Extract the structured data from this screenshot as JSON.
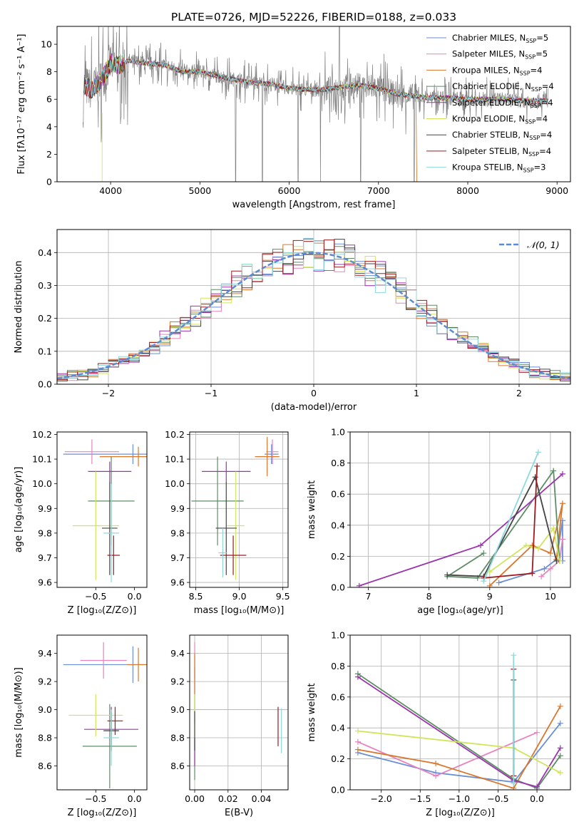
{
  "title": "PLATE=0726, MJD=52226, FIBERID=0188, z=0.033",
  "colors": {
    "s0": "#6a8fd6",
    "s1": "#e684be",
    "s2": "#d9782d",
    "s3": "#5e8c66",
    "s4": "#9b34ad",
    "s5": "#d0e65a",
    "s6": "#444444",
    "s7": "#9e1b1f",
    "s8": "#8dd9dd",
    "spectrum": "#808080",
    "normal": "#5b8bd1"
  },
  "chart_data": [
    {
      "id": "spectrum",
      "type": "line",
      "title": "PLATE=0726, MJD=52226, FIBERID=0188, z=0.033",
      "xlabel": "wavelength [Angstrom, rest frame]",
      "ylabel": "Flux [fλ10⁻¹⁷ erg cm⁻² s⁻¹ A⁻¹]",
      "xlim": [
        3400,
        9150
      ],
      "ylim": [
        0,
        11.3
      ],
      "xticks": [
        4000,
        5000,
        6000,
        7000,
        8000,
        9000
      ],
      "yticks": [
        0,
        2,
        4,
        6,
        8,
        10
      ],
      "grid": false,
      "legend_position": "top-right",
      "legend": [
        "Chabrier MILES, N_SSP=5",
        "Salpeter MILES, N_SSP=5",
        "Kroupa MILES, N_SSP=4",
        "Chabrier ELODIE, N_SSP=4",
        "Salpeter ELODIE, N_SSP=4",
        "Kroupa ELODIE, N_SSP=4",
        "Chabrier STELIB, N_SSP=4",
        "Salpeter STELIB, N_SSP=4",
        "Kroupa STELIB, N_SSP=3"
      ],
      "continuum": {
        "x": [
          3700,
          3800,
          3900,
          4000,
          4100,
          4200,
          4400,
          4600,
          4800,
          5000,
          5200,
          5400,
          5600,
          5800,
          6000,
          6200,
          6400,
          6600,
          6800,
          7000,
          7200,
          7400,
          7600,
          7800,
          8000,
          8200,
          8400,
          8600,
          8800
        ],
        "y": [
          7.0,
          6.7,
          7.5,
          8.6,
          8.5,
          8.8,
          8.6,
          8.5,
          8.0,
          8.0,
          7.7,
          7.4,
          7.2,
          7.1,
          6.8,
          6.7,
          6.7,
          6.9,
          7.0,
          6.8,
          6.4,
          6.2,
          6.1,
          6.1,
          6.0,
          6.0,
          6.0,
          5.9,
          5.9
        ]
      }
    },
    {
      "id": "residuals",
      "type": "histogram",
      "xlabel": "(data-model)/error",
      "ylabel": "Normed distribution",
      "xlim": [
        -2.5,
        2.5
      ],
      "ylim": [
        0,
        0.47
      ],
      "xticks": [
        -2,
        -1,
        0,
        1,
        2
      ],
      "yticks": [
        0,
        0.1,
        0.2,
        0.3,
        0.4
      ],
      "grid": true,
      "legend": [
        "𝒩(0, 1)"
      ],
      "legend_position": "top-right",
      "bin_width": 0.1
    },
    {
      "id": "age-vs-Z",
      "type": "scatter",
      "xlabel": "Z [log₁₀(Z/Z⊙)]",
      "ylabel": "age  [log₁₀(age/yr)]",
      "xlim": [
        -1.0,
        0.16
      ],
      "ylim": [
        9.58,
        10.21
      ],
      "xticks": [
        -0.5,
        0.0
      ],
      "yticks": [
        9.6,
        9.7,
        9.8,
        9.9,
        10.0,
        10.1,
        10.2
      ],
      "grid": false,
      "points": [
        {
          "s": 0,
          "x": -0.02,
          "y": 10.12,
          "xerr": 0.9,
          "yerr": 0.04
        },
        {
          "s": 1,
          "x": -0.55,
          "y": 10.13,
          "xerr": 0.35,
          "yerr": 0.05
        },
        {
          "s": 2,
          "x": 0.05,
          "y": 10.11,
          "xerr": 0.5,
          "yerr": 0.04
        },
        {
          "s": 3,
          "x": -0.3,
          "y": 9.93,
          "xerr": 0.3,
          "yerr": 0.18
        },
        {
          "s": 4,
          "x": -0.32,
          "y": 10.05,
          "xerr": 0.28,
          "yerr": 0.04
        },
        {
          "s": 5,
          "x": -0.5,
          "y": 9.83,
          "xerr": 0.3,
          "yerr": 0.22
        },
        {
          "s": 6,
          "x": -0.32,
          "y": 9.82,
          "xerr": 0.1,
          "yerr": 0.19
        },
        {
          "s": 7,
          "x": -0.27,
          "y": 9.71,
          "xerr": 0.08,
          "yerr": 0.08
        },
        {
          "s": 8,
          "x": -0.3,
          "y": 9.8,
          "xerr": 0.1,
          "yerr": 0.2
        }
      ]
    },
    {
      "id": "age-vs-mass",
      "type": "scatter",
      "xlabel": "mass [log₁₀(M/M⊙)]",
      "ylabel": "",
      "xlim": [
        8.43,
        9.56
      ],
      "ylim": [
        9.58,
        10.21
      ],
      "xticks": [
        8.5,
        9.0,
        9.5
      ],
      "yticks": [
        9.6,
        9.7,
        9.8,
        9.9,
        10.0,
        10.1,
        10.2
      ],
      "grid": true,
      "points": [
        {
          "s": 0,
          "x": 9.37,
          "y": 10.12,
          "xerr": 0.08,
          "yerr": 0.04
        },
        {
          "s": 1,
          "x": 9.38,
          "y": 10.13,
          "xerr": 0.07,
          "yerr": 0.05
        },
        {
          "s": 2,
          "x": 9.32,
          "y": 10.11,
          "xerr": 0.14,
          "yerr": 0.08
        },
        {
          "s": 3,
          "x": 8.75,
          "y": 9.93,
          "xerr": 0.3,
          "yerr": 0.18
        },
        {
          "s": 4,
          "x": 8.85,
          "y": 10.05,
          "xerr": 0.28,
          "yerr": 0.04
        },
        {
          "s": 5,
          "x": 8.96,
          "y": 9.83,
          "xerr": 0.1,
          "yerr": 0.22
        },
        {
          "s": 6,
          "x": 8.85,
          "y": 9.82,
          "xerr": 0.12,
          "yerr": 0.19
        },
        {
          "s": 7,
          "x": 8.93,
          "y": 9.71,
          "xerr": 0.15,
          "yerr": 0.08
        },
        {
          "s": 8,
          "x": 8.81,
          "y": 9.72,
          "xerr": 0.05,
          "yerr": 0.1
        }
      ]
    },
    {
      "id": "weight-vs-age",
      "type": "line",
      "xlabel": "age  [log₁₀(age/yr)]",
      "ylabel": "mass weight",
      "xlim": [
        6.7,
        10.33
      ],
      "ylim": [
        0,
        1.0
      ],
      "xticks": [
        7,
        8,
        9,
        10
      ],
      "yticks": [
        0,
        0.2,
        0.4,
        0.6,
        0.8,
        1.0
      ],
      "grid": true,
      "series": [
        {
          "s": 0,
          "x": [
            9.15,
            9.9,
            10.1,
            10.2,
            10.2
          ],
          "y": [
            0.03,
            0.12,
            0.18,
            0.43,
            0.17
          ]
        },
        {
          "s": 1,
          "x": [
            9.85,
            10.0,
            10.15,
            10.2
          ],
          "y": [
            0.07,
            0.12,
            0.17,
            0.31
          ]
        },
        {
          "s": 2,
          "x": [
            9.0,
            9.7,
            10.0,
            10.2,
            10.1
          ],
          "y": [
            0.01,
            0.27,
            0.22,
            0.54,
            0.18
          ]
        },
        {
          "s": 3,
          "x": [
            8.9,
            8.3,
            8.8,
            10.05,
            10.15
          ],
          "y": [
            0.22,
            0.07,
            0.06,
            0.75,
            0.17
          ]
        },
        {
          "s": 4,
          "x": [
            6.85,
            8.85,
            10.2
          ],
          "y": [
            0.01,
            0.27,
            0.73
          ]
        },
        {
          "s": 5,
          "x": [
            9.0,
            9.6,
            9.8,
            10.05,
            10.15
          ],
          "y": [
            0.1,
            0.27,
            0.25,
            0.38,
            0.17
          ]
        },
        {
          "s": 6,
          "x": [
            8.3,
            8.9,
            9.75,
            10.1
          ],
          "y": [
            0.08,
            0.07,
            0.71,
            0.17
          ]
        },
        {
          "s": 7,
          "x": [
            8.9,
            9.7,
            9.78
          ],
          "y": [
            0.06,
            0.09,
            0.78
          ]
        },
        {
          "s": 8,
          "x": [
            8.9,
            9.8
          ],
          "y": [
            0.04,
            0.87
          ]
        }
      ]
    },
    {
      "id": "mass-vs-Z",
      "type": "scatter",
      "xlabel": "Z [log₁₀(Z/Z⊙)]",
      "ylabel": "mass [log₁₀(M/M⊙)]",
      "xlim": [
        -1.0,
        0.16
      ],
      "ylim": [
        8.43,
        9.53
      ],
      "xticks": [
        -0.5,
        0.0
      ],
      "yticks": [
        8.6,
        8.8,
        9.0,
        9.2,
        9.4
      ],
      "grid": false,
      "points": [
        {
          "s": 0,
          "x": -0.02,
          "y": 9.32,
          "xerr": 0.9,
          "yerr": 0.13
        },
        {
          "s": 1,
          "x": -0.4,
          "y": 9.35,
          "xerr": 0.3,
          "yerr": 0.13
        },
        {
          "s": 2,
          "x": 0.05,
          "y": 9.32,
          "xerr": 0.15,
          "yerr": 0.12
        },
        {
          "s": 3,
          "x": -0.32,
          "y": 8.74,
          "xerr": 0.35,
          "yerr": 0.3
        },
        {
          "s": 4,
          "x": -0.3,
          "y": 8.86,
          "xerr": 0.35,
          "yerr": 0.16
        },
        {
          "s": 5,
          "x": -0.5,
          "y": 8.96,
          "xerr": 0.35,
          "yerr": 0.15
        },
        {
          "s": 6,
          "x": -0.3,
          "y": 8.85,
          "xerr": 0.1,
          "yerr": 0.14
        },
        {
          "s": 7,
          "x": -0.25,
          "y": 8.92,
          "xerr": 0.1,
          "yerr": 0.1
        },
        {
          "s": 8,
          "x": -0.3,
          "y": 8.8,
          "xerr": 0.1,
          "yerr": 0.2
        }
      ]
    },
    {
      "id": "mass-vs-ebv",
      "type": "scatter",
      "xlabel": "E(B-V)",
      "ylabel": "",
      "xlim": [
        -0.003,
        0.056
      ],
      "ylim": [
        8.43,
        9.53
      ],
      "xticks": [
        0.0,
        0.02,
        0.04
      ],
      "yticks": [
        8.6,
        8.8,
        9.0,
        9.2,
        9.4
      ],
      "grid": true,
      "points": [
        {
          "s": 0,
          "x": 0.0,
          "y": 9.1,
          "xerr": 0,
          "yerr": 0.2
        },
        {
          "s": 1,
          "x": 0.0,
          "y": 9.35,
          "xerr": 0,
          "yerr": 0.13
        },
        {
          "s": 2,
          "x": 0.0,
          "y": 9.2,
          "xerr": 0,
          "yerr": 0.2
        },
        {
          "s": 3,
          "x": 0.0,
          "y": 8.65,
          "xerr": 0,
          "yerr": 0.15
        },
        {
          "s": 4,
          "x": 0.0,
          "y": 8.7,
          "xerr": 0,
          "yerr": 0.1
        },
        {
          "s": 5,
          "x": 0.0,
          "y": 8.96,
          "xerr": 0,
          "yerr": 0.15
        },
        {
          "s": 6,
          "x": 0.0,
          "y": 8.85,
          "xerr": 0,
          "yerr": 0.14
        },
        {
          "s": 7,
          "x": 0.05,
          "y": 8.88,
          "xerr": 0,
          "yerr": 0.14
        },
        {
          "s": 8,
          "x": 0.052,
          "y": 8.85,
          "xerr": 0,
          "yerr": 0.16
        }
      ]
    },
    {
      "id": "weight-vs-Z",
      "type": "line",
      "xlabel": "Z [log₁₀(Z/Z⊙)]",
      "ylabel": "mass weight",
      "xlim": [
        -2.4,
        0.43
      ],
      "ylim": [
        0,
        1.0
      ],
      "xticks": [
        -2.0,
        -1.5,
        -1.0,
        -0.5,
        0.0
      ],
      "yticks": [
        0,
        0.2,
        0.4,
        0.6,
        0.8,
        1.0
      ],
      "grid": true,
      "series": [
        {
          "s": 0,
          "x": [
            -2.3,
            -1.3,
            -0.3,
            0.3
          ],
          "y": [
            0.24,
            0.11,
            0.05,
            0.43
          ]
        },
        {
          "s": 1,
          "x": [
            -2.3,
            -1.3,
            0.0
          ],
          "y": [
            0.31,
            0.09,
            0.37
          ]
        },
        {
          "s": 2,
          "x": [
            -2.3,
            -1.3,
            -0.3,
            0.3
          ],
          "y": [
            0.26,
            0.17,
            0.01,
            0.54
          ]
        },
        {
          "s": 3,
          "x": [
            -2.3,
            -0.3,
            0.0,
            0.3
          ],
          "y": [
            0.75,
            0.07,
            0.01,
            0.22
          ]
        },
        {
          "s": 4,
          "x": [
            -2.3,
            -0.3,
            0.0,
            0.3
          ],
          "y": [
            0.73,
            0.06,
            0.02,
            0.27
          ]
        },
        {
          "s": 5,
          "x": [
            -2.3,
            -0.3,
            0.3
          ],
          "y": [
            0.38,
            0.27,
            0.11
          ]
        },
        {
          "s": 6,
          "x": [
            -0.3,
            -0.3
          ],
          "y": [
            0.71,
            0.09
          ]
        },
        {
          "s": 7,
          "x": [
            -0.3,
            -0.3
          ],
          "y": [
            0.78,
            0.09
          ]
        },
        {
          "s": 8,
          "x": [
            -0.3,
            -0.3
          ],
          "y": [
            0.87,
            0.04
          ]
        }
      ]
    }
  ]
}
